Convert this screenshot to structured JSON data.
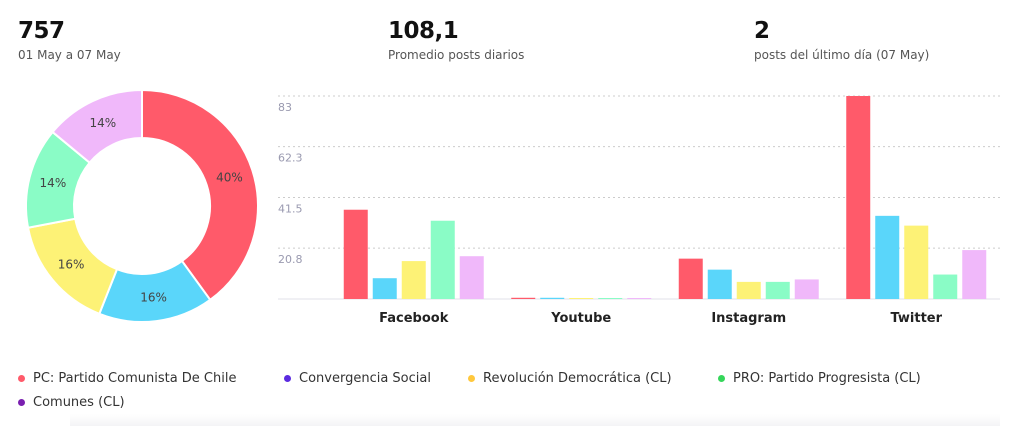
{
  "summary": {
    "total": {
      "value": "757",
      "label": "01 May a 07 May"
    },
    "average": {
      "value": "108,1",
      "label": "Promedio posts diarios"
    },
    "last_day": {
      "value": "2",
      "label": "posts del último día (07 May)"
    }
  },
  "legend": [
    {
      "label": "PC: Partido Comunista De Chile",
      "color": "#ff5a6a"
    },
    {
      "label": "Convergencia Social",
      "color": "#5b2be0"
    },
    {
      "label": "Revolución Democrática (CL)",
      "color": "#ffc83d"
    },
    {
      "label": "PRO: Partido Progresista (CL)",
      "color": "#35d65a"
    },
    {
      "label": "Comunes (CL)",
      "color": "#7a1fb0"
    }
  ],
  "chart_data": [
    {
      "type": "pie",
      "labels": [
        "",
        "",
        "",
        "",
        ""
      ],
      "values": [
        40,
        16,
        16,
        14,
        14
      ],
      "value_labels": [
        "40%",
        "16%",
        "16%",
        "14%",
        "14%"
      ],
      "colors": [
        "#ff5a6a",
        "#5ad6fa",
        "#fdf276",
        "#8afcc6",
        "#f0b8fa"
      ],
      "donut": true
    },
    {
      "type": "bar",
      "categories": [
        "Facebook",
        "Youtube",
        "Instagram",
        "Twitter"
      ],
      "series": [
        {
          "values": [
            36.5,
            0.5,
            16.5,
            83
          ],
          "color": "#ff5a6a"
        },
        {
          "values": [
            8.5,
            0.5,
            12,
            34
          ],
          "color": "#5ad6fa"
        },
        {
          "values": [
            15.5,
            0.3,
            7,
            30
          ],
          "color": "#fdf276"
        },
        {
          "values": [
            32,
            0.3,
            7,
            10
          ],
          "color": "#8afcc6"
        },
        {
          "values": [
            17.5,
            0.3,
            8,
            20
          ],
          "color": "#f0b8fa"
        }
      ],
      "yticks": [
        "20.8",
        "41.5",
        "62.3",
        "83"
      ],
      "ylim": [
        0,
        83
      ],
      "grid": true
    }
  ]
}
